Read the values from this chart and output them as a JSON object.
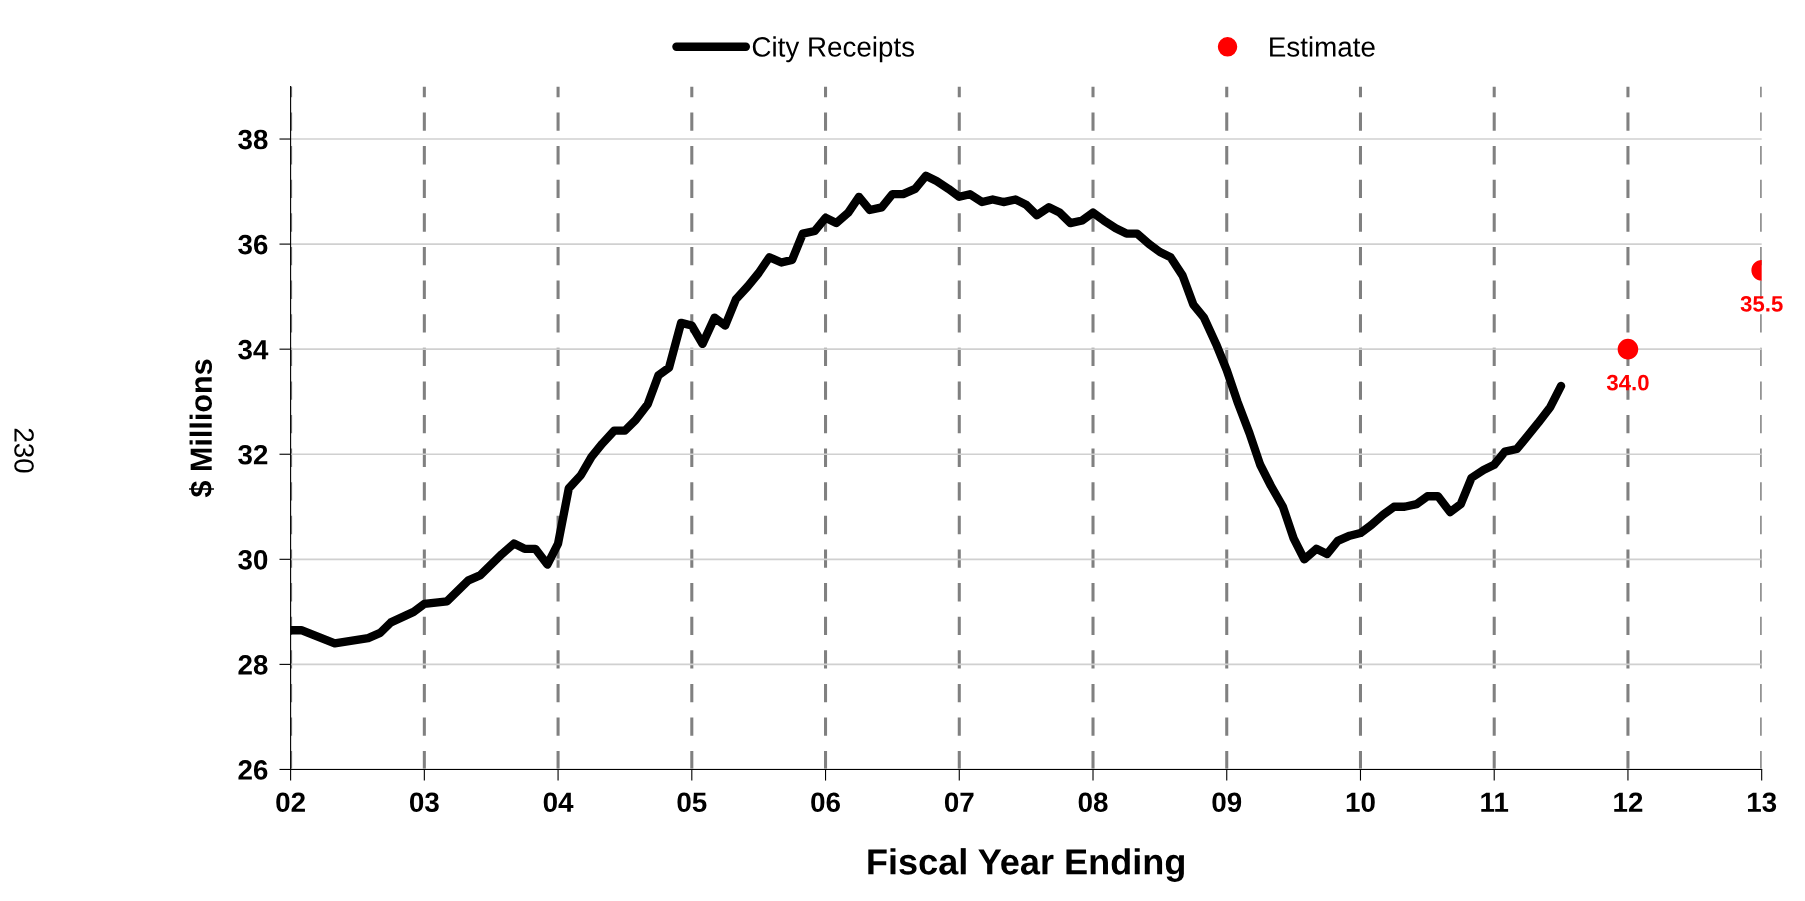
{
  "chart_data": {
    "type": "line",
    "xlabel": "Fiscal Year Ending",
    "ylabel": "$ Millions",
    "annotations": [
      "230"
    ],
    "xlim": [
      2,
      13
    ],
    "xticks": [
      {
        "value": 2,
        "label": "02"
      },
      {
        "value": 3,
        "label": "03"
      },
      {
        "value": 4,
        "label": "04"
      },
      {
        "value": 5,
        "label": "05"
      },
      {
        "value": 6,
        "label": "06"
      },
      {
        "value": 7,
        "label": "07"
      },
      {
        "value": 8,
        "label": "08"
      },
      {
        "value": 9,
        "label": "09"
      },
      {
        "value": 10,
        "label": "10"
      },
      {
        "value": 11,
        "label": "11"
      },
      {
        "value": 12,
        "label": "12"
      },
      {
        "value": 13,
        "label": "13"
      }
    ],
    "ylim": [
      26,
      39
    ],
    "yticks": [
      26,
      28,
      30,
      32,
      34,
      36,
      38
    ],
    "grid": true,
    "legend": "top",
    "series": [
      {
        "name": "City Receipts",
        "color": "#000000",
        "marker": "none",
        "line_style": "solid",
        "x": [
          2.0,
          2.08,
          2.33,
          2.58,
          2.67,
          2.75,
          2.92,
          3.0,
          3.17,
          3.33,
          3.42,
          3.58,
          3.67,
          3.75,
          3.83,
          3.92,
          4.0,
          4.08,
          4.17,
          4.25,
          4.33,
          4.42,
          4.5,
          4.58,
          4.67,
          4.75,
          4.83,
          4.92,
          5.0,
          5.08,
          5.17,
          5.25,
          5.33,
          5.42,
          5.5,
          5.58,
          5.67,
          5.75,
          5.83,
          5.92,
          6.0,
          6.08,
          6.17,
          6.25,
          6.33,
          6.42,
          6.5,
          6.58,
          6.67,
          6.75,
          6.83,
          6.92,
          7.0,
          7.08,
          7.17,
          7.25,
          7.33,
          7.42,
          7.5,
          7.58,
          7.67,
          7.75,
          7.83,
          7.92,
          8.0,
          8.08,
          8.17,
          8.25,
          8.33,
          8.42,
          8.5,
          8.58,
          8.67,
          8.75,
          8.83,
          8.92,
          9.0,
          9.08,
          9.17,
          9.25,
          9.33,
          9.42,
          9.5,
          9.58,
          9.67,
          9.75,
          9.83,
          9.92,
          10.0,
          10.08,
          10.17,
          10.25,
          10.33,
          10.42,
          10.5,
          10.58,
          10.67,
          10.75,
          10.83,
          10.92,
          11.0,
          11.08,
          11.17,
          11.25,
          11.33,
          11.42,
          11.5
        ],
        "values": [
          28.65,
          28.65,
          28.4,
          28.5,
          28.6,
          28.8,
          29.0,
          29.15,
          29.2,
          29.6,
          29.7,
          30.1,
          30.3,
          30.2,
          30.2,
          29.9,
          30.3,
          31.35,
          31.6,
          31.95,
          32.2,
          32.45,
          32.45,
          32.65,
          32.95,
          33.5,
          33.65,
          34.5,
          34.45,
          34.1,
          34.6,
          34.45,
          34.95,
          35.2,
          35.45,
          35.75,
          35.65,
          35.7,
          36.2,
          36.25,
          36.5,
          36.4,
          36.6,
          36.9,
          36.65,
          36.7,
          36.95,
          36.95,
          37.05,
          37.3,
          37.2,
          37.05,
          36.9,
          36.95,
          36.8,
          36.85,
          36.8,
          36.85,
          36.75,
          36.55,
          36.7,
          36.6,
          36.4,
          36.45,
          36.6,
          36.45,
          36.3,
          36.2,
          36.2,
          36.0,
          35.85,
          35.75,
          35.4,
          34.85,
          34.6,
          34.1,
          33.6,
          33.0,
          32.4,
          31.8,
          31.4,
          31.0,
          30.4,
          30.0,
          30.2,
          30.1,
          30.35,
          30.45,
          30.5,
          30.65,
          30.85,
          31.0,
          31.0,
          31.05,
          31.2,
          31.2,
          30.9,
          31.05,
          31.55,
          31.7,
          31.8,
          32.05,
          32.1,
          32.35,
          32.6,
          32.9,
          33.3
        ]
      },
      {
        "name": "Estimate",
        "type": "scatter",
        "color": "#ff0000",
        "marker": "circle",
        "x": [
          12,
          13
        ],
        "values": [
          34.0,
          35.5
        ],
        "value_labels": [
          "34.0",
          "35.5"
        ]
      }
    ]
  }
}
